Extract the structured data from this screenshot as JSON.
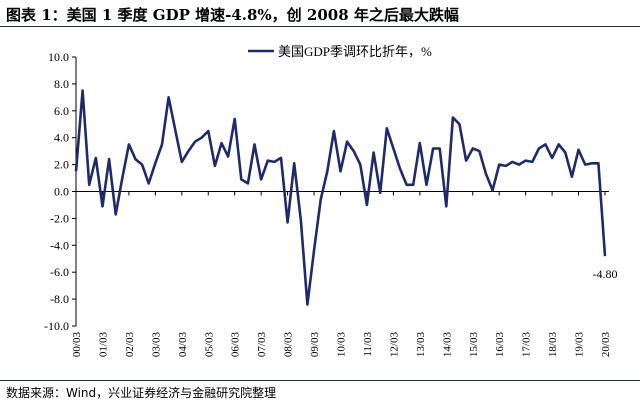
{
  "header": {
    "title": "图表 1：美国 1 季度 GDP 增速-4.8%，创 2008 年之后最大跌幅"
  },
  "footer": {
    "source": "数据来源：Wind，兴业证券经济与金融研究院整理"
  },
  "chart_data": {
    "type": "line",
    "title": "",
    "xlabel": "",
    "ylabel": "",
    "ylim": [
      -10,
      10
    ],
    "yticks": [
      "10.0",
      "8.0",
      "6.0",
      "4.0",
      "2.0",
      "0.0",
      "-2.0",
      "-4.0",
      "-6.0",
      "-8.0",
      "-10.0"
    ],
    "xticks": [
      "00/03",
      "01/03",
      "02/03",
      "03/03",
      "04/03",
      "05/03",
      "06/03",
      "07/03",
      "08/03",
      "09/03",
      "10/03",
      "11/03",
      "12/03",
      "13/03",
      "14/03",
      "15/03",
      "16/03",
      "17/03",
      "18/03",
      "19/03",
      "20/03"
    ],
    "grid": false,
    "legend": "top-center",
    "series": [
      {
        "name": "美国GDP季调环比折年，%",
        "color": "#1f2a6b",
        "values": [
          1.5,
          7.5,
          0.5,
          2.5,
          -1.1,
          2.4,
          -1.7,
          1.0,
          3.5,
          2.4,
          2.0,
          0.6,
          2.1,
          3.5,
          7.0,
          4.6,
          2.2,
          3.0,
          3.7,
          4.0,
          4.5,
          1.9,
          3.6,
          2.6,
          5.4,
          0.9,
          0.6,
          3.5,
          0.9,
          2.3,
          2.2,
          2.5,
          -2.3,
          2.1,
          -2.1,
          -8.4,
          -4.4,
          -0.6,
          1.5,
          4.5,
          1.5,
          3.7,
          3.0,
          2.0,
          -1.0,
          2.9,
          -0.1,
          4.7,
          3.2,
          1.7,
          0.5,
          0.5,
          3.6,
          0.5,
          3.2,
          3.2,
          -1.1,
          5.5,
          5.0,
          2.3,
          3.2,
          3.0,
          1.3,
          0.1,
          2.0,
          1.9,
          2.2,
          2.0,
          2.3,
          2.2,
          3.2,
          3.5,
          2.5,
          3.5,
          2.9,
          1.1,
          3.1,
          2.0,
          2.1,
          2.1,
          -4.8
        ]
      }
    ],
    "annotations": [
      {
        "text": "-4.80",
        "point_index": 80
      }
    ]
  }
}
